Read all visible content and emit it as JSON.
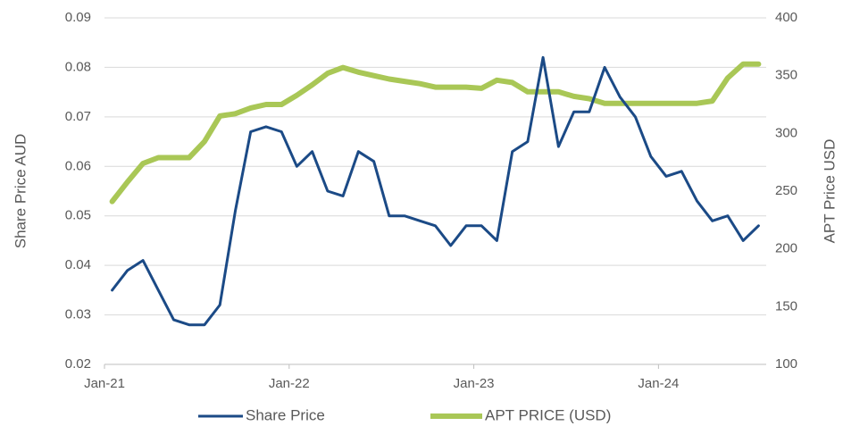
{
  "chart_data": {
    "type": "line",
    "categories": [
      "Jan-21",
      null,
      null,
      null,
      null,
      null,
      null,
      null,
      null,
      null,
      null,
      null,
      "Jan-22",
      null,
      null,
      null,
      null,
      null,
      null,
      null,
      null,
      null,
      null,
      null,
      "Jan-23",
      null,
      null,
      null,
      null,
      null,
      null,
      null,
      null,
      null,
      null,
      null,
      "Jan-24",
      null,
      null,
      null,
      null,
      null,
      null
    ],
    "series": [
      {
        "name": "Share Price",
        "color": "#1b4a86",
        "axis": "y",
        "values": [
          0.035,
          0.039,
          0.041,
          0.035,
          0.029,
          0.028,
          0.028,
          0.032,
          0.051,
          0.067,
          0.068,
          0.067,
          0.06,
          0.063,
          0.055,
          0.054,
          0.063,
          0.061,
          0.05,
          0.05,
          0.049,
          0.048,
          0.044,
          0.048,
          0.048,
          0.045,
          0.063,
          0.065,
          0.082,
          0.064,
          0.071,
          0.071,
          0.08,
          0.074,
          0.07,
          0.062,
          0.058,
          0.059,
          0.053,
          0.049,
          0.05,
          0.045,
          0.048
        ]
      },
      {
        "name": "APT PRICE (USD)",
        "color": "#a9c756",
        "axis": "y2",
        "values": [
          241,
          258,
          274,
          279,
          279,
          279,
          293,
          315,
          317,
          322,
          325,
          325,
          333,
          342,
          352,
          357,
          353,
          350,
          347,
          345,
          343,
          340,
          340,
          340,
          339,
          346,
          344,
          336,
          336,
          336,
          332,
          330,
          326,
          326,
          326,
          326,
          326,
          326,
          326,
          328,
          348,
          360,
          360
        ]
      }
    ],
    "ylabel": "Share Price AUD",
    "y2label": "APT Price USD",
    "ylim": [
      0.02,
      0.09
    ],
    "yticks": [
      0.02,
      0.03,
      0.04,
      0.05,
      0.06,
      0.07,
      0.08,
      0.09
    ],
    "y2lim": [
      100,
      400
    ],
    "y2ticks": [
      100,
      150,
      200,
      250,
      300,
      350,
      400
    ],
    "grid": true,
    "legend": "bottom"
  }
}
